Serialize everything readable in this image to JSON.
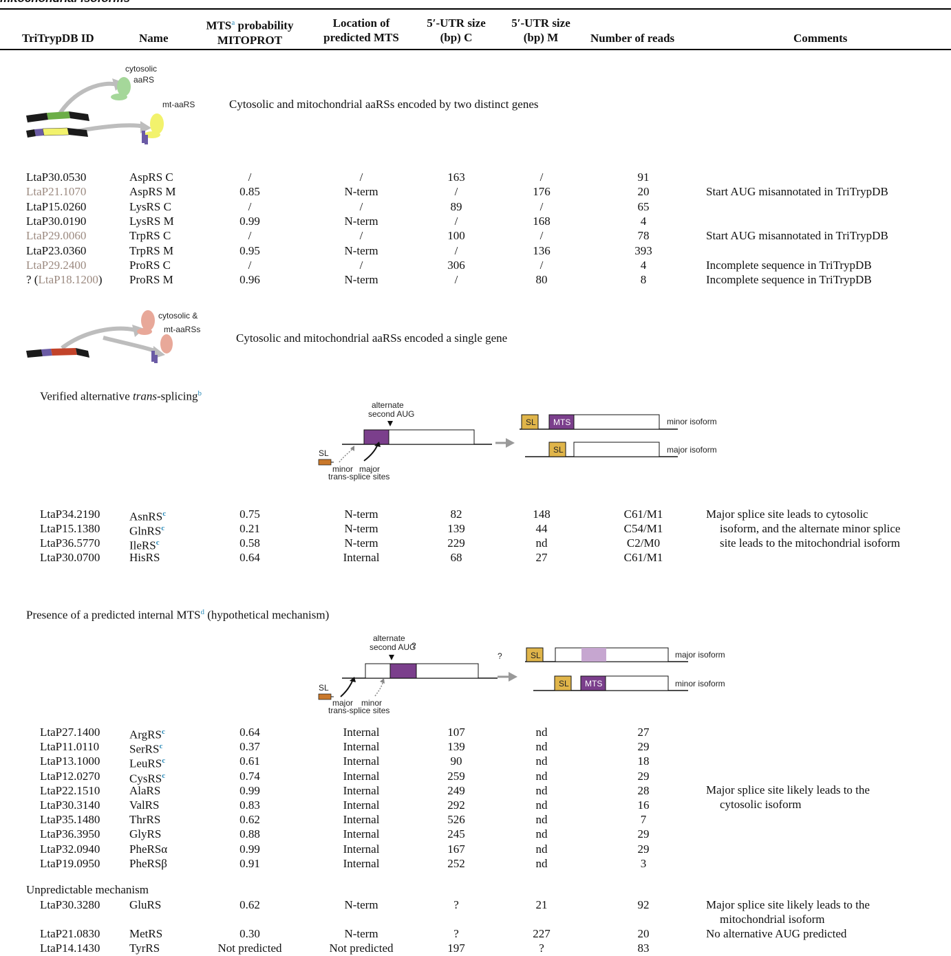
{
  "caption_fragment": "mitochondrial isoforms",
  "headers": {
    "id": "TriTrypDB ID",
    "name": "Name",
    "mts_line1": "MTS",
    "mts_sup": "a",
    "mts_line1b": " probability",
    "mts_line2": "MITOPROT",
    "loc_line1": "Location of",
    "loc_line2": "predicted MTS",
    "utr_c_line1": "5′-UTR size",
    "utr_c_line2": "(bp) C",
    "utr_m_line1": "5′-UTR size",
    "utr_m_line2": "(bp) M",
    "reads": "Number of reads",
    "comments": "Comments"
  },
  "section1": {
    "label_cytosolic": "cytosolic",
    "label_aars": "aaRS",
    "label_mt": "mt-aaRS",
    "title": "Cytosolic and mitochondrial aaRSs encoded by two distinct genes",
    "rows": [
      {
        "id": "LtaP30.0530",
        "name": "AspRS C",
        "prob": "/",
        "loc": "/",
        "c": "163",
        "m": "/",
        "n": "91",
        "comment": ""
      },
      {
        "id": "LtaP21.1070",
        "name": "AspRS M",
        "prob": "0.85",
        "loc": "N-term",
        "c": "/",
        "m": "176",
        "n": "20",
        "comment": "Start AUG misannotated in TriTrypDB"
      },
      {
        "id": "LtaP15.0260",
        "name": "LysRS C",
        "prob": "/",
        "loc": "/",
        "c": "89",
        "m": "/",
        "n": "65",
        "comment": ""
      },
      {
        "id": "LtaP30.0190",
        "name": "LysRS M",
        "prob": "0.99",
        "loc": "N-term",
        "c": "/",
        "m": "168",
        "n": "4",
        "comment": ""
      },
      {
        "id": "LtaP29.0060",
        "name": "TrpRS C",
        "prob": "/",
        "loc": "/",
        "c": "100",
        "m": "/",
        "n": "78",
        "comment": "Start AUG misannotated in TriTrypDB"
      },
      {
        "id": "LtaP23.0360",
        "name": "TrpRS M",
        "prob": "0.95",
        "loc": "N-term",
        "c": "/",
        "m": "136",
        "n": "393",
        "comment": ""
      },
      {
        "id": "LtaP29.2400",
        "name": "ProRS C",
        "prob": "/",
        "loc": "/",
        "c": "306",
        "m": "/",
        "n": "4",
        "comment": "Incomplete sequence in TriTrypDB"
      },
      {
        "id_prefix": "? (",
        "id": "LtaP18.1200",
        "id_suffix": ")",
        "name": "ProRS M",
        "prob": "0.96",
        "loc": "N-term",
        "c": "/",
        "m": "80",
        "n": "8",
        "comment": "Incomplete sequence in TriTrypDB"
      }
    ]
  },
  "section2": {
    "label_1": "cytosolic &",
    "label_2": "mt-aaRSs",
    "title": "Cytosolic and mitochondrial aaRSs encoded a single gene"
  },
  "subsection_a": {
    "title_pre": "Verified alternative ",
    "title_italic": "trans",
    "title_post": "-splicing",
    "title_sup": "b",
    "diagram": {
      "alt_1": "alternate",
      "alt_2": "second AUG",
      "sl": "SL",
      "minor": "minor",
      "major": "major",
      "sites": "trans-splice sites",
      "mts": "MTS",
      "iso_top": "minor isoform",
      "iso_bottom": "major isoform"
    },
    "rows": [
      {
        "id": "LtaP34.2190",
        "name": "AsnRS",
        "sup": "c",
        "prob": "0.75",
        "loc": "N-term",
        "c": "82",
        "m": "148",
        "n": "C61/M1"
      },
      {
        "id": "LtaP15.1380",
        "name": "GlnRS",
        "sup": "c",
        "prob": "0.21",
        "loc": "N-term",
        "c": "139",
        "m": "44",
        "n": "C54/M1"
      },
      {
        "id": "LtaP36.5770",
        "name": "IleRS",
        "sup": "c",
        "prob": "0.58",
        "loc": "N-term",
        "c": "229",
        "m": "nd",
        "n": "C2/M0"
      },
      {
        "id": "LtaP30.0700",
        "name": "HisRS",
        "sup": "",
        "prob": "0.64",
        "loc": "Internal",
        "c": "68",
        "m": "27",
        "n": "C61/M1"
      }
    ],
    "comment_lines": [
      "Major splice site leads to cytosolic",
      "isoform, and the alternate minor splice",
      "site leads to the mitochondrial isoform"
    ]
  },
  "subsection_b": {
    "title_pre": "Presence of a predicted internal MTS",
    "title_sup": "d",
    "title_post": " (hypothetical mechanism)",
    "diagram": {
      "alt_1": "alternate",
      "alt_2": "second AUG",
      "q": "?",
      "sl": "SL",
      "major": "major",
      "minor": "minor",
      "sites": "trans-splice sites",
      "mts": "MTS",
      "iso_top": "major isoform",
      "iso_bottom": "minor isoform"
    },
    "rows": [
      {
        "id": "LtaP27.1400",
        "name": "ArgRS",
        "sup": "c",
        "prob": "0.64",
        "loc": "Internal",
        "c": "107",
        "m": "nd",
        "n": "27"
      },
      {
        "id": "LtaP11.0110",
        "name": "SerRS",
        "sup": "c",
        "prob": "0.37",
        "loc": "Internal",
        "c": "139",
        "m": "nd",
        "n": "29"
      },
      {
        "id": "LtaP13.1000",
        "name": "LeuRS",
        "sup": "c",
        "prob": "0.61",
        "loc": "Internal",
        "c": "90",
        "m": "nd",
        "n": "18"
      },
      {
        "id": "LtaP12.0270",
        "name": "CysRS",
        "sup": "c",
        "prob": "0.74",
        "loc": "Internal",
        "c": "259",
        "m": "nd",
        "n": "29"
      },
      {
        "id": "LtaP22.1510",
        "name": "AlaRS",
        "sup": "",
        "prob": "0.99",
        "loc": "Internal",
        "c": "249",
        "m": "nd",
        "n": "28"
      },
      {
        "id": "LtaP30.3140",
        "name": "ValRS",
        "sup": "",
        "prob": "0.83",
        "loc": "Internal",
        "c": "292",
        "m": "nd",
        "n": "16"
      },
      {
        "id": "LtaP35.1480",
        "name": "ThrRS",
        "sup": "",
        "prob": "0.62",
        "loc": "Internal",
        "c": "526",
        "m": "nd",
        "n": "7"
      },
      {
        "id": "LtaP36.3950",
        "name": "GlyRS",
        "sup": "",
        "prob": "0.88",
        "loc": "Internal",
        "c": "245",
        "m": "nd",
        "n": "29"
      },
      {
        "id": "LtaP32.0940",
        "name": "PheRSα",
        "sup": "",
        "prob": "0.99",
        "loc": "Internal",
        "c": "167",
        "m": "nd",
        "n": "29"
      },
      {
        "id": "LtaP19.0950",
        "name": "PheRSβ",
        "sup": "",
        "prob": "0.91",
        "loc": "Internal",
        "c": "252",
        "m": "nd",
        "n": "3"
      }
    ],
    "comment_lines": [
      "Major splice site likely leads to the",
      "cytosolic isoform"
    ]
  },
  "subsection_c": {
    "title": "Unpredictable mechanism",
    "rows": [
      {
        "id": "LtaP30.3280",
        "name": "GluRS",
        "prob": "0.62",
        "loc": "N-term",
        "c": "?",
        "m": "21",
        "n": "92",
        "comment1": "Major splice site likely leads to the",
        "comment2": "mitochondrial isoform"
      },
      {
        "id": "LtaP21.0830",
        "name": "MetRS",
        "prob": "0.30",
        "loc": "N-term",
        "c": "?",
        "m": "227",
        "n": "20",
        "comment1": "No alternative AUG predicted",
        "comment2": ""
      },
      {
        "id": "LtaP14.1430",
        "name": "TyrRS",
        "prob": "Not predicted",
        "loc": "Not predicted",
        "c": "197",
        "m": "?",
        "n": "83",
        "comment1": "",
        "comment2": ""
      }
    ]
  },
  "colors": {
    "link_gray": "#9c8a80",
    "footnote_blue": "#2a8ab8",
    "mts_purple": "#7b3f8c",
    "mts_light": "#c6a6d0",
    "sl_yellow": "#e0b54a",
    "sl_orange": "#c9782b"
  }
}
